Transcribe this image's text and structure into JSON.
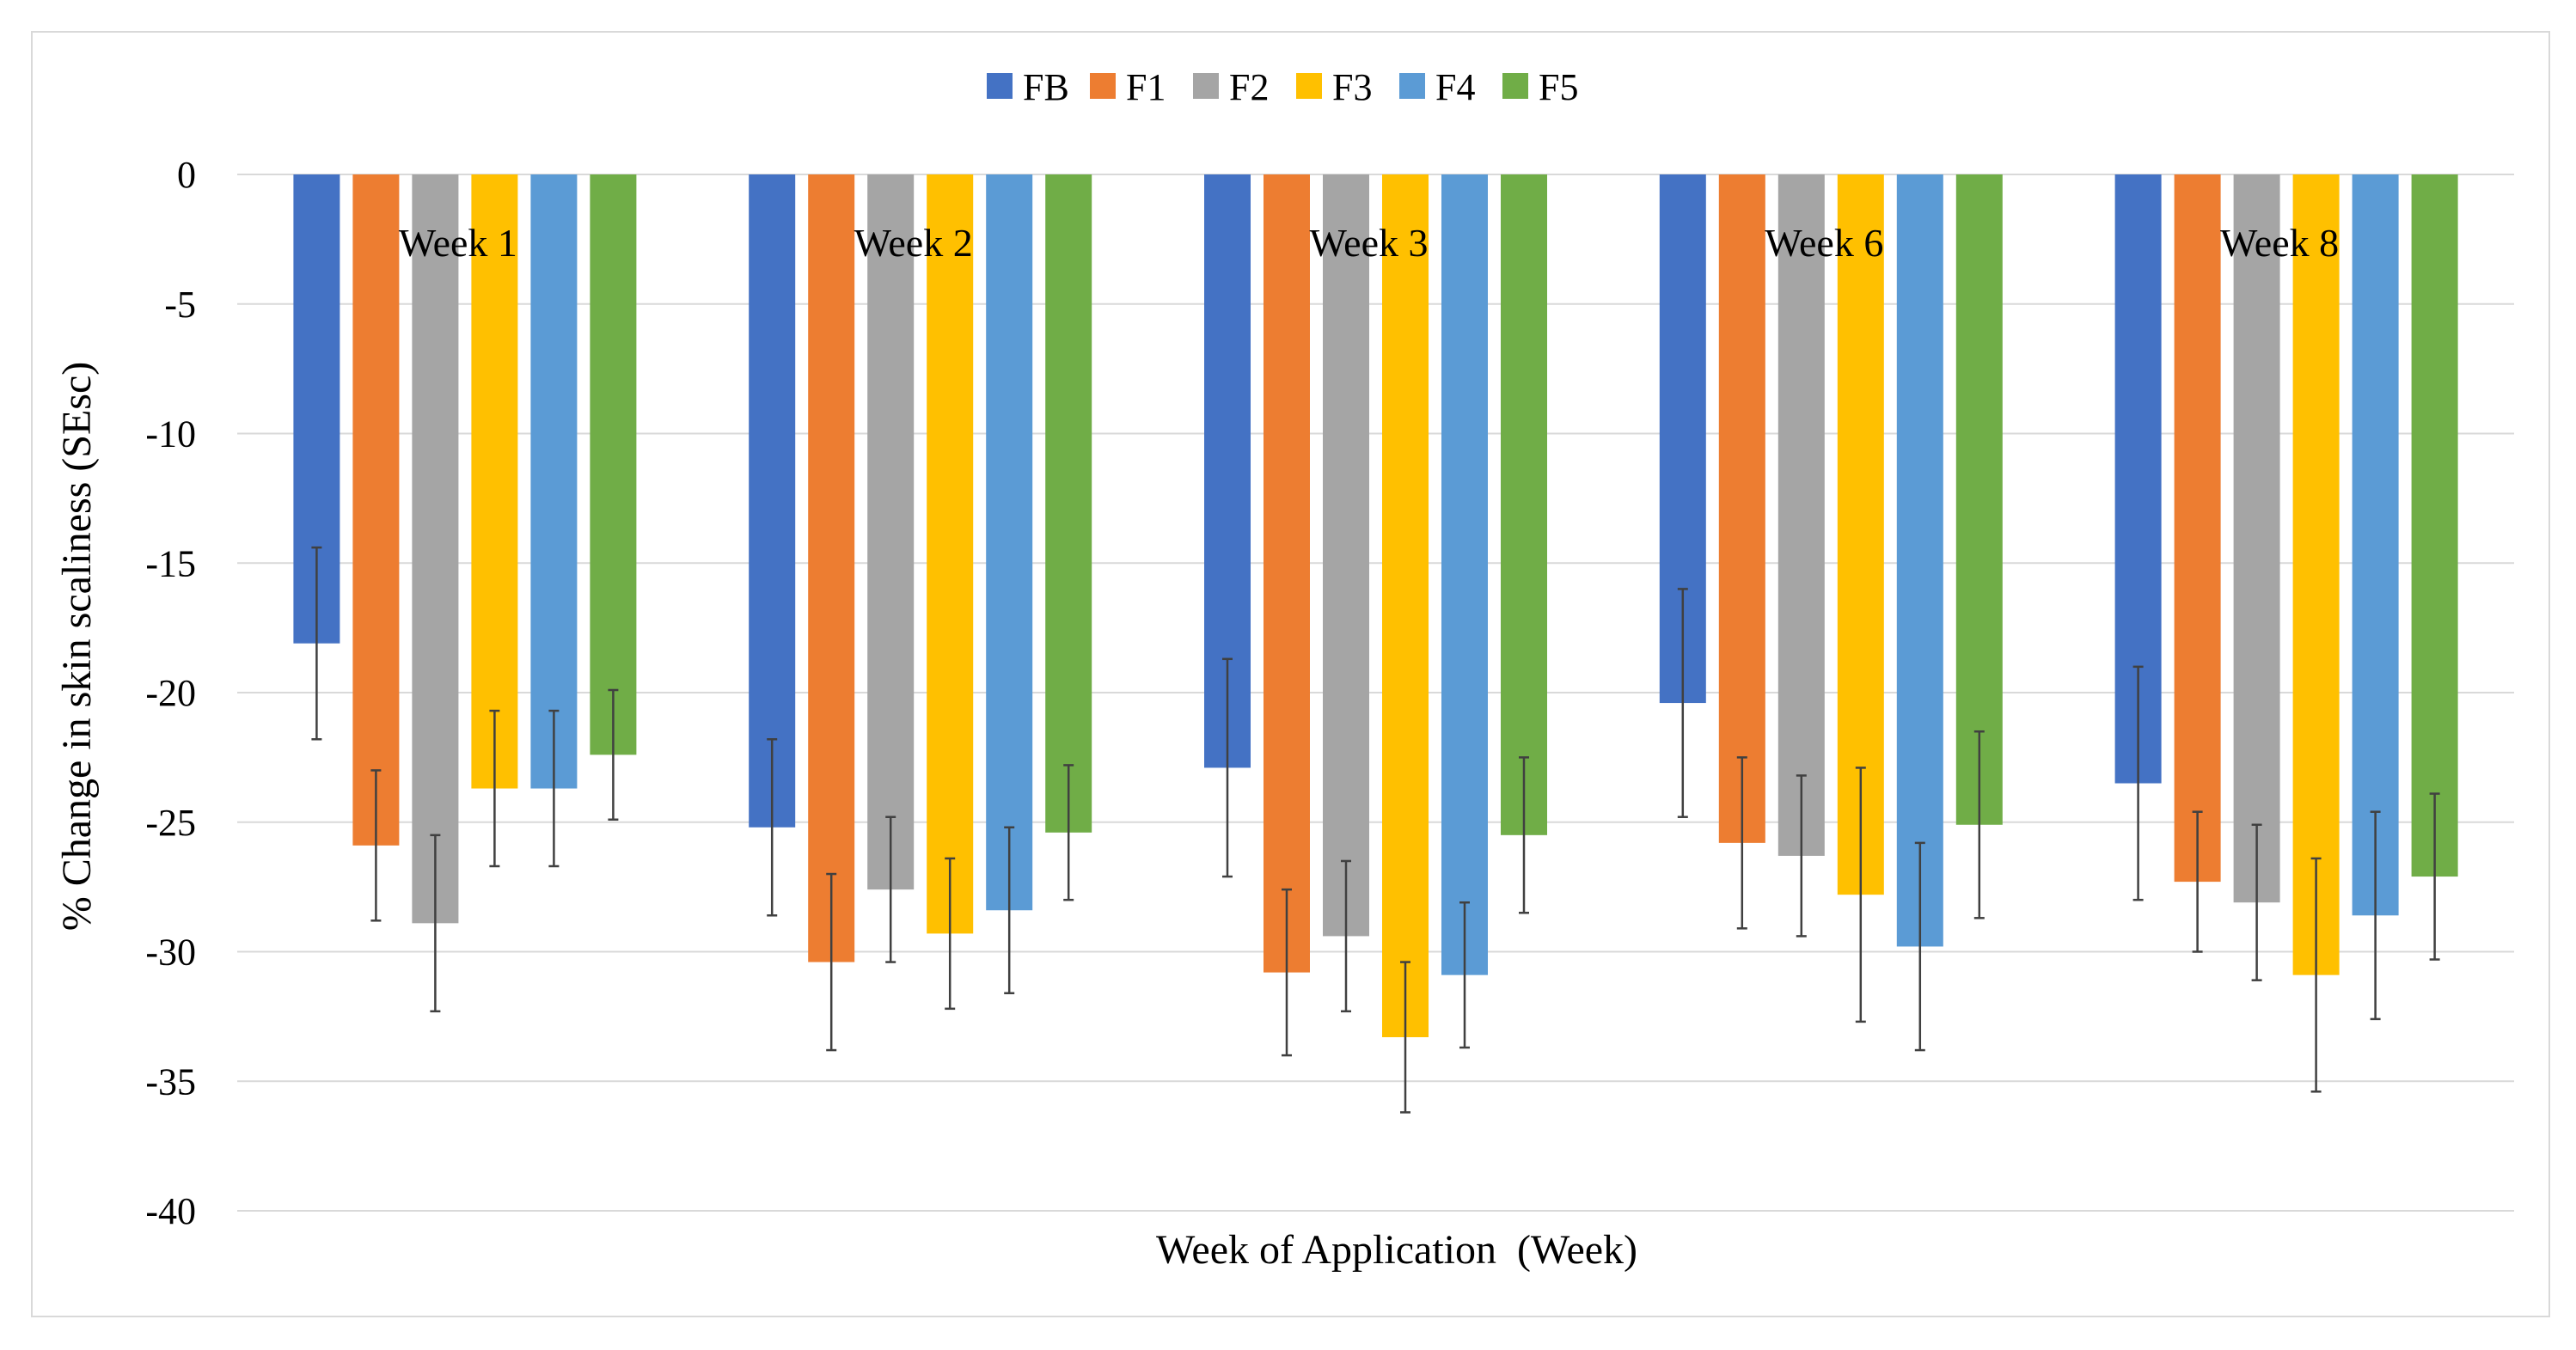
{
  "chart_data": {
    "type": "bar",
    "title": "",
    "xlabel": "Week of Application  (Week)",
    "ylabel": "% Change in skin scaliness (SEsc)",
    "ylim": [
      -40,
      0
    ],
    "yticks": [
      0,
      -5,
      -10,
      -15,
      -20,
      -25,
      -30,
      -35,
      -40
    ],
    "grid": true,
    "legend_position": "top-center",
    "categories": [
      "Week 1",
      "Week 2",
      "Week 3",
      "Week 6",
      "Week 8"
    ],
    "series": [
      {
        "name": "FB",
        "color": "#4472C4",
        "values": [
          -18.1,
          -25.2,
          -22.9,
          -20.4,
          -23.5
        ],
        "errors": [
          3.7,
          3.4,
          4.2,
          4.4,
          4.5
        ]
      },
      {
        "name": "F1",
        "color": "#ED7D31",
        "values": [
          -25.9,
          -30.4,
          -30.8,
          -25.8,
          -27.3
        ],
        "errors": [
          2.9,
          3.4,
          3.2,
          3.3,
          2.7
        ]
      },
      {
        "name": "F2",
        "color": "#A5A5A5",
        "values": [
          -28.9,
          -27.6,
          -29.4,
          -26.3,
          -28.1
        ],
        "errors": [
          3.4,
          2.8,
          2.9,
          3.1,
          3.0
        ]
      },
      {
        "name": "F3",
        "color": "#FFC000",
        "values": [
          -23.7,
          -29.3,
          -33.3,
          -27.8,
          -30.9
        ],
        "errors": [
          3.0,
          2.9,
          2.9,
          4.9,
          4.5
        ]
      },
      {
        "name": "F4",
        "color": "#5B9BD5",
        "values": [
          -23.7,
          -28.4,
          -30.9,
          -29.8,
          -28.6
        ],
        "errors": [
          3.0,
          3.2,
          2.8,
          4.0,
          4.0
        ]
      },
      {
        "name": "F5",
        "color": "#70AD47",
        "values": [
          -22.4,
          -25.4,
          -25.5,
          -25.1,
          -27.1
        ],
        "errors": [
          2.5,
          2.6,
          3.0,
          3.6,
          3.2
        ]
      }
    ]
  }
}
